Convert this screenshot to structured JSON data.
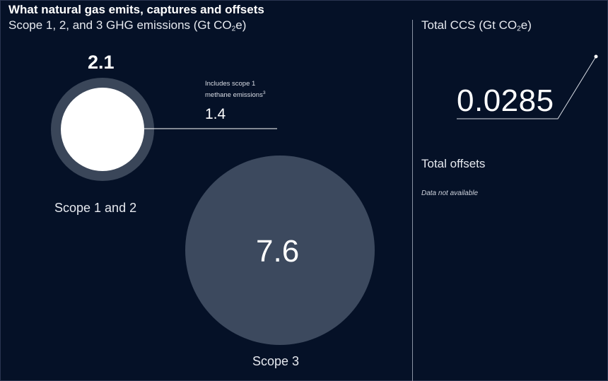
{
  "header": {
    "title": "What natural gas emits, captures and offsets",
    "subtitle_prefix": "Scope 1, 2, and 3 GHG emissions (Gt CO",
    "subtitle_sub": "2",
    "subtitle_suffix": "e)"
  },
  "ccs": {
    "title_prefix": "Total CCS (Gt CO",
    "title_sub": "2",
    "title_suffix": "e)",
    "value": "0.0285"
  },
  "offsets": {
    "title": "Total offsets",
    "note": "Data not available"
  },
  "chart_data": {
    "type": "bubble",
    "title": "What natural gas emits, captures and offsets",
    "subtitle": "Scope 1, 2, and 3 GHG emissions (Gt CO2e)",
    "unit": "Gt CO2e",
    "series": [
      {
        "name": "Scope 1 and 2",
        "value": 2.1,
        "value_label": "2.1",
        "sub_value": 1.4,
        "sub_value_label": "1.4",
        "sub_note_line1": "Includes scope 1",
        "sub_note_line2": "methane emissions",
        "sub_note_sup": "3"
      },
      {
        "name": "Scope 3",
        "value": 7.6,
        "value_label": "7.6"
      }
    ],
    "ccs_total": 0.0285,
    "offsets_total": null
  },
  "colors": {
    "background": "#051127",
    "bubble": "#3c495e",
    "inner": "#ffffff",
    "text": "#ffffff"
  }
}
